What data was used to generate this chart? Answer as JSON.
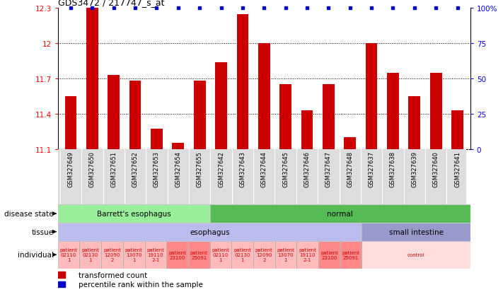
{
  "title": "GDS3472 / 217747_s_at",
  "samples": [
    "GSM327649",
    "GSM327650",
    "GSM327651",
    "GSM327652",
    "GSM327653",
    "GSM327654",
    "GSM327655",
    "GSM327642",
    "GSM327643",
    "GSM327644",
    "GSM327645",
    "GSM327646",
    "GSM327647",
    "GSM327648",
    "GSM327637",
    "GSM327638",
    "GSM327639",
    "GSM327640",
    "GSM327641"
  ],
  "bar_values": [
    11.55,
    12.3,
    11.73,
    11.68,
    11.27,
    11.15,
    11.68,
    11.84,
    12.25,
    12.0,
    11.65,
    11.43,
    11.65,
    11.2,
    12.0,
    11.75,
    11.55,
    11.75,
    11.43
  ],
  "ymin": 11.1,
  "ymax": 12.3,
  "yticks": [
    11.1,
    11.4,
    11.7,
    12.0,
    12.3
  ],
  "ytick_labels": [
    "11.1",
    "11.4",
    "11.7",
    "12",
    "12.3"
  ],
  "right_yticks": [
    0,
    25,
    50,
    75,
    100
  ],
  "right_ytick_labels": [
    "0",
    "25",
    "50",
    "75",
    "100%"
  ],
  "bar_color": "#cc0000",
  "dot_color": "#0000cc",
  "disease_state_groups": [
    {
      "label": "Barrett's esophagus",
      "start": 0,
      "end": 7,
      "color": "#99ee99"
    },
    {
      "label": "normal",
      "start": 7,
      "end": 19,
      "color": "#55bb55"
    }
  ],
  "tissue_groups": [
    {
      "label": "esophagus",
      "start": 0,
      "end": 14,
      "color": "#bbbbee"
    },
    {
      "label": "small intestine",
      "start": 14,
      "end": 19,
      "color": "#9999cc"
    }
  ],
  "individual_groups": [
    {
      "label": "patient\n02110\n1",
      "start": 0,
      "end": 1,
      "color": "#ffbbbb"
    },
    {
      "label": "patient\n02130\n1",
      "start": 1,
      "end": 2,
      "color": "#ffbbbb"
    },
    {
      "label": "patient\n12090\n2",
      "start": 2,
      "end": 3,
      "color": "#ffbbbb"
    },
    {
      "label": "patient\n13070\n1",
      "start": 3,
      "end": 4,
      "color": "#ffbbbb"
    },
    {
      "label": "patient\n19110\n2-1",
      "start": 4,
      "end": 5,
      "color": "#ffbbbb"
    },
    {
      "label": "patient\n23100",
      "start": 5,
      "end": 6,
      "color": "#ff8888"
    },
    {
      "label": "patient\n25091",
      "start": 6,
      "end": 7,
      "color": "#ff8888"
    },
    {
      "label": "patient\n02110\n1",
      "start": 7,
      "end": 8,
      "color": "#ffbbbb"
    },
    {
      "label": "patient\n02130\n1",
      "start": 8,
      "end": 9,
      "color": "#ffbbbb"
    },
    {
      "label": "patient\n12090\n2",
      "start": 9,
      "end": 10,
      "color": "#ffbbbb"
    },
    {
      "label": "patient\n13070\n1",
      "start": 10,
      "end": 11,
      "color": "#ffbbbb"
    },
    {
      "label": "patient\n19110\n2-1",
      "start": 11,
      "end": 12,
      "color": "#ffbbbb"
    },
    {
      "label": "patient\n23100",
      "start": 12,
      "end": 13,
      "color": "#ff8888"
    },
    {
      "label": "patient\n25091",
      "start": 13,
      "end": 14,
      "color": "#ff8888"
    },
    {
      "label": "control",
      "start": 14,
      "end": 19,
      "color": "#ffdddd"
    }
  ],
  "legend_items": [
    {
      "color": "#cc0000",
      "label": "transformed count"
    },
    {
      "color": "#0000cc",
      "label": "percentile rank within the sample"
    }
  ]
}
